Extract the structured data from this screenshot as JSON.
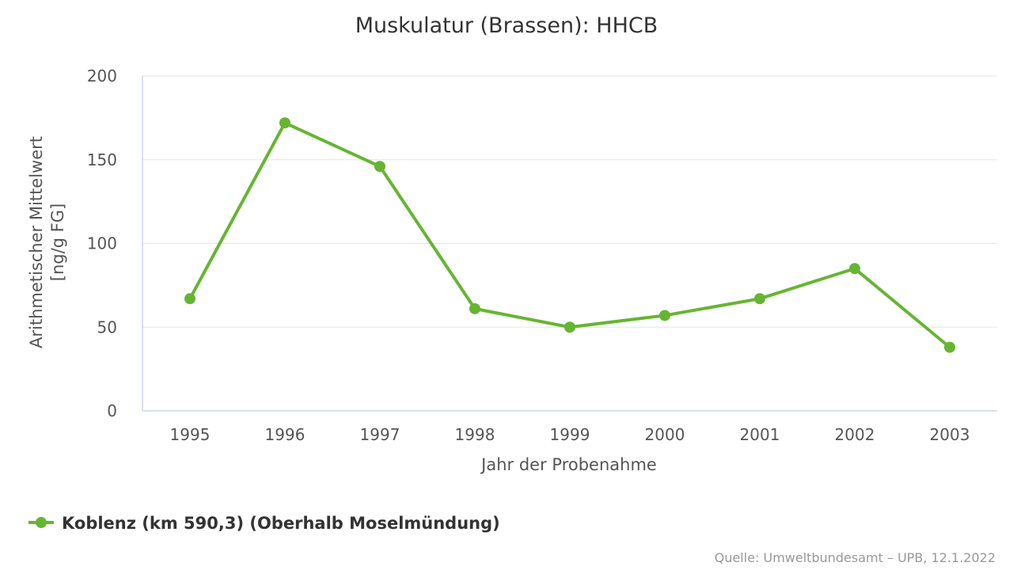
{
  "chart_data": {
    "type": "line",
    "title": "Muskulatur (Brassen): HHCB",
    "xlabel": "Jahr der Probenahme",
    "ylabel_lines": [
      "Arithmetischer Mittelwert",
      "[ng/g FG]"
    ],
    "categories": [
      "1995",
      "1996",
      "1997",
      "1998",
      "1999",
      "2000",
      "2001",
      "2002",
      "2003"
    ],
    "ylim": [
      0,
      200
    ],
    "yticks": [
      0,
      50,
      100,
      150,
      200
    ],
    "grid": true,
    "legend_position": "bottom-left",
    "series": [
      {
        "name": "Koblenz (km 590,3) (Oberhalb Moselmündung)",
        "color": "#66b532",
        "values": [
          67,
          172,
          146,
          61,
          50,
          57,
          67,
          85,
          38
        ]
      }
    ]
  },
  "credits": "Quelle: Umweltbundesamt – UPB, 12.1.2022",
  "colors": {
    "grid": "#e6e6e6",
    "axis": "#ccd6eb"
  }
}
